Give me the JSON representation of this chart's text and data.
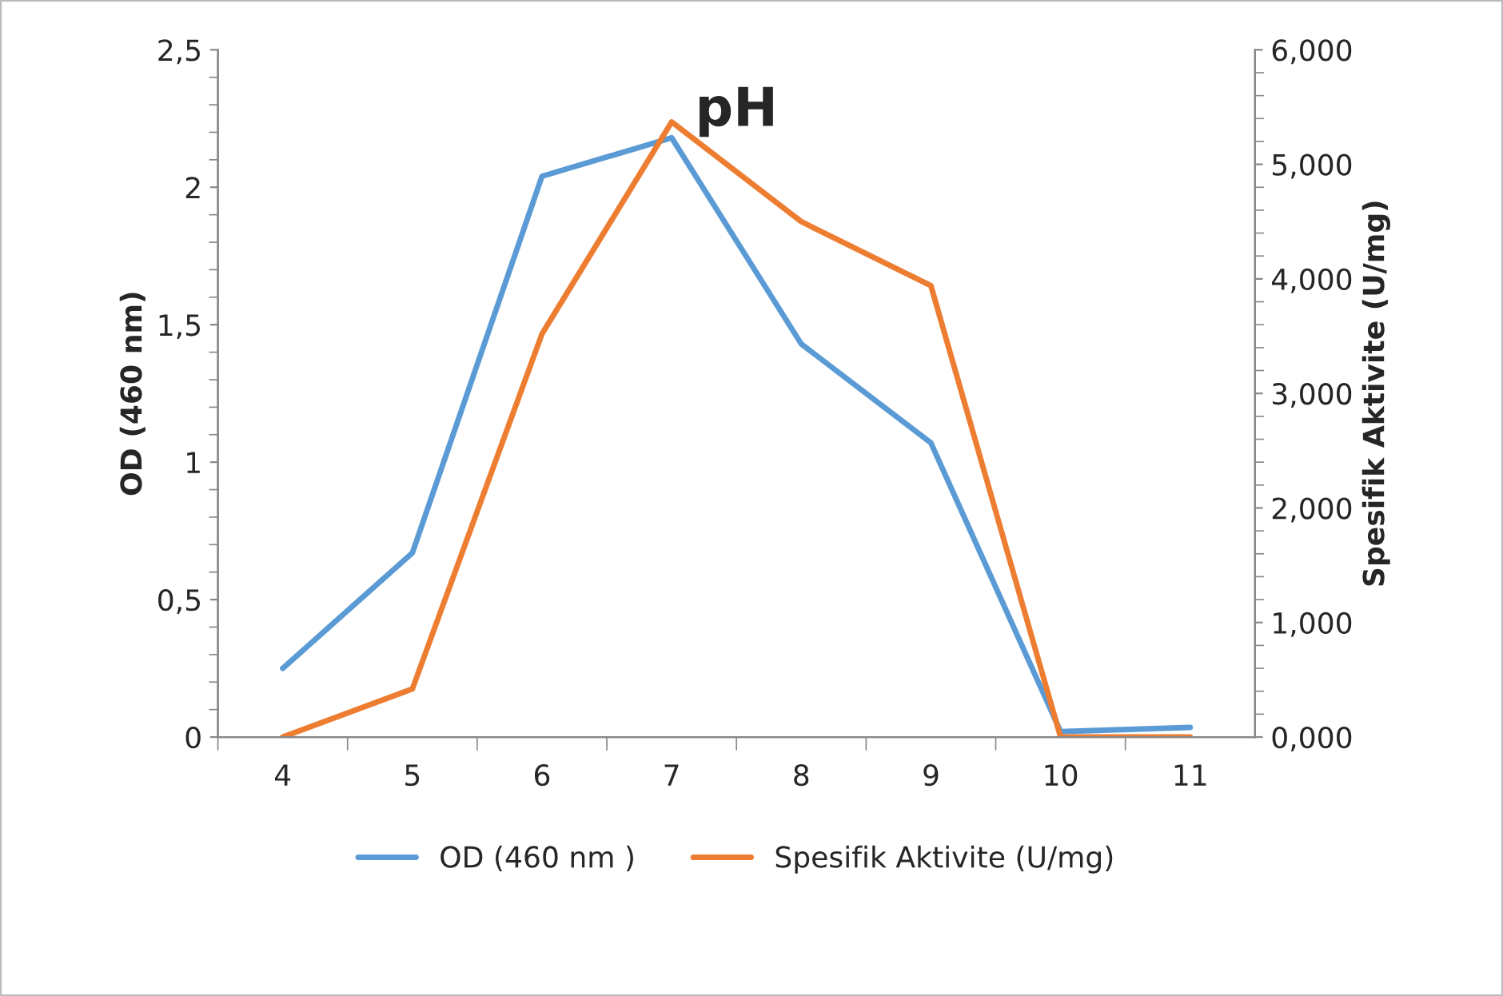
{
  "chart_data": {
    "type": "line",
    "title": "pH",
    "ylabel": "OD (460 nm)",
    "y2label": "Spesifik Aktivite (U/mg)",
    "categories": [
      "4",
      "5",
      "6",
      "7",
      "8",
      "9",
      "10",
      "11"
    ],
    "series": [
      {
        "name": "OD (460 nm )",
        "color": "#5b9bd5",
        "values": [
          0.25,
          0.67,
          2.04,
          2.18,
          1.43,
          1.07,
          0.02,
          0.035
        ]
      },
      {
        "name": "Spesifik Aktivite (U/mg)",
        "color": "#ed7d31",
        "axis": "y2",
        "values": [
          0,
          0.42,
          3.52,
          5.37,
          4.5,
          3.94,
          0,
          0
        ]
      }
    ],
    "ylim": [
      0,
      2.5
    ],
    "yticks": [
      0,
      {
        "value": 0.5,
        "label": "0,5"
      },
      1,
      {
        "value": 1.5,
        "label": "1,5"
      },
      2,
      {
        "value": 2.5,
        "label": "2,5"
      }
    ],
    "y2lim": [
      0,
      6
    ],
    "y2ticks": [
      {
        "value": 0,
        "label": "0,000"
      },
      {
        "value": 1,
        "label": "1,000"
      },
      {
        "value": 2,
        "label": "2,000"
      },
      {
        "value": 3,
        "label": "3,000"
      },
      {
        "value": 4,
        "label": "4,000"
      },
      {
        "value": 5,
        "label": "5,000"
      },
      {
        "value": 6,
        "label": "6,000"
      }
    ],
    "legend": "bottom",
    "grid": false,
    "line_style": "solid",
    "marker": "none"
  }
}
